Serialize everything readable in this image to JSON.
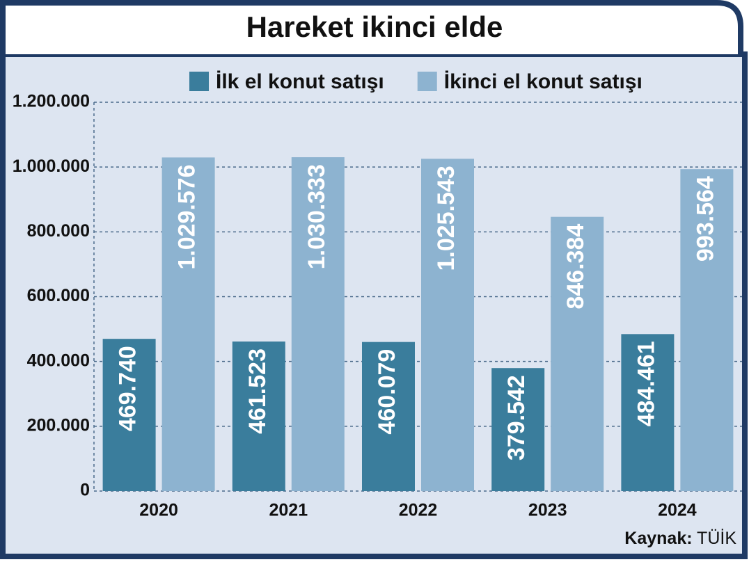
{
  "chart_data": {
    "type": "bar",
    "title": "Hareket ikinci elde",
    "categories": [
      "2020",
      "2021",
      "2022",
      "2023",
      "2024"
    ],
    "series": [
      {
        "name": "İlk el konut satışı",
        "color": "#3a7d9c",
        "values": [
          469740,
          461523,
          460079,
          379542,
          484461
        ],
        "value_labels": [
          "469.740",
          "461.523",
          "460.079",
          "379.542",
          "484.461"
        ]
      },
      {
        "name": "İkinci el konut satışı",
        "color": "#8db3d0",
        "values": [
          1029576,
          1030333,
          1025543,
          846384,
          993564
        ],
        "value_labels": [
          "1.029.576",
          "1.030.333",
          "1.025.543",
          "846.384",
          "993.564"
        ]
      }
    ],
    "ylim": [
      0,
      1200000
    ],
    "yticks": [
      0,
      {
        "value": 200000,
        "label": "200.000"
      },
      {
        "value": 400000,
        "label": "400.000"
      },
      {
        "value": 600000,
        "label": "600.000"
      },
      {
        "value": 800000,
        "label": "800.000"
      },
      {
        "value": 1000000,
        "label": "1.000.000"
      },
      {
        "value": 1200000,
        "label": "1.200.000"
      }
    ],
    "grid": true,
    "legend": "top",
    "source_label": "Kaynak:",
    "source": "TÜİK"
  }
}
